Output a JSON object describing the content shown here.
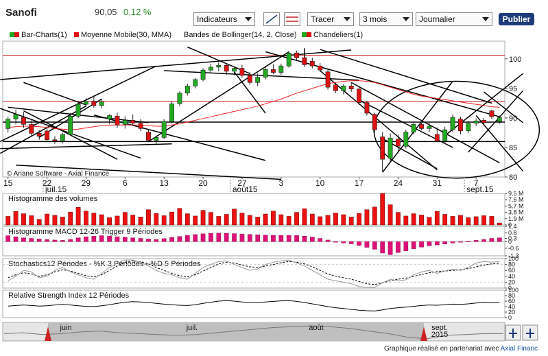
{
  "header": {
    "title": "Sanofi",
    "price": "90,05",
    "change": "0,12 %",
    "indicators_label": "Indicateurs",
    "tracer_label": "Tracer",
    "period_label": "3 mois",
    "interval_label": "Journalier",
    "publish_label": "Publier"
  },
  "legend": {
    "bar_charts": "Bar-Charts(1)",
    "moving_average": "Moyenne Mobile(30, MMA)",
    "bollinger": "Bandes de Bollinger(14, 2, Close)",
    "candles": "Chandeliers(1)"
  },
  "colors": {
    "up": "#22aa22",
    "down": "#dd1111",
    "ma": "#ee2222",
    "volume": "#ee1111",
    "macd": "#dd1177",
    "trend": "#000000",
    "publish": "#1e3c7a",
    "nav": "#888888"
  },
  "copyright": "© Ariane Software - Axial Finance",
  "credit": {
    "text": "Graphique réalisé en partenariat avec ",
    "partner": "Axial Financ"
  },
  "chart_data": [
    {
      "type": "candlestick",
      "title": "Sanofi",
      "y_ticks": [
        "100",
        "95",
        "90",
        "85",
        "80"
      ],
      "ylim": [
        80,
        103
      ],
      "x_day_labels": [
        "15",
        "22",
        "29",
        "6",
        "13",
        "20",
        "27",
        "3",
        "10",
        "17",
        "24",
        "31",
        "7"
      ],
      "x_month_labels": [
        "juil.15",
        "août15",
        "sept.15"
      ],
      "horizontal_levels": [
        100.6,
        92.8,
        89.3,
        86.0
      ],
      "candles": [
        {
          "o": 88.2,
          "h": 90.2,
          "l": 87.5,
          "c": 89.8
        },
        {
          "o": 89.8,
          "h": 91.4,
          "l": 88.9,
          "c": 90.6
        },
        {
          "o": 90.1,
          "h": 91.0,
          "l": 88.3,
          "c": 88.9
        },
        {
          "o": 88.9,
          "h": 89.6,
          "l": 87.0,
          "c": 87.4
        },
        {
          "o": 87.4,
          "h": 88.0,
          "l": 86.3,
          "c": 86.9
        },
        {
          "o": 87.8,
          "h": 88.3,
          "l": 85.9,
          "c": 86.3
        },
        {
          "o": 86.3,
          "h": 86.9,
          "l": 85.6,
          "c": 86.1
        },
        {
          "o": 86.1,
          "h": 87.5,
          "l": 85.7,
          "c": 87.2
        },
        {
          "o": 87.2,
          "h": 90.8,
          "l": 87.0,
          "c": 90.3
        },
        {
          "o": 90.3,
          "h": 92.8,
          "l": 90.0,
          "c": 92.3
        },
        {
          "o": 92.3,
          "h": 93.4,
          "l": 91.9,
          "c": 92.8
        },
        {
          "o": 92.8,
          "h": 93.8,
          "l": 91.7,
          "c": 92.1
        },
        {
          "o": 92.1,
          "h": 93.2,
          "l": 91.6,
          "c": 92.7
        },
        {
          "o": 89.8,
          "h": 90.6,
          "l": 89.0,
          "c": 90.4
        },
        {
          "o": 90.3,
          "h": 90.9,
          "l": 88.3,
          "c": 88.8
        },
        {
          "o": 88.9,
          "h": 90.3,
          "l": 88.2,
          "c": 89.6
        },
        {
          "o": 89.6,
          "h": 90.6,
          "l": 88.7,
          "c": 89.1
        },
        {
          "o": 89.1,
          "h": 89.8,
          "l": 87.8,
          "c": 88.2
        },
        {
          "o": 87.6,
          "h": 88.1,
          "l": 85.9,
          "c": 86.2
        },
        {
          "o": 86.2,
          "h": 87.0,
          "l": 85.6,
          "c": 86.7
        },
        {
          "o": 86.7,
          "h": 89.8,
          "l": 86.4,
          "c": 89.4
        },
        {
          "o": 89.4,
          "h": 92.9,
          "l": 89.1,
          "c": 92.4
        },
        {
          "o": 92.4,
          "h": 94.5,
          "l": 92.0,
          "c": 94.2
        },
        {
          "o": 94.2,
          "h": 95.8,
          "l": 93.8,
          "c": 95.4
        },
        {
          "o": 95.4,
          "h": 96.8,
          "l": 95.0,
          "c": 96.5
        },
        {
          "o": 96.5,
          "h": 98.4,
          "l": 96.2,
          "c": 98.1
        },
        {
          "o": 98.1,
          "h": 99.2,
          "l": 97.6,
          "c": 98.6
        },
        {
          "o": 98.6,
          "h": 99.4,
          "l": 97.9,
          "c": 98.9
        },
        {
          "o": 98.9,
          "h": 99.3,
          "l": 97.3,
          "c": 97.9
        },
        {
          "o": 97.9,
          "h": 98.7,
          "l": 97.2,
          "c": 98.4
        },
        {
          "o": 98.4,
          "h": 99.0,
          "l": 96.8,
          "c": 97.2
        },
        {
          "o": 97.2,
          "h": 97.8,
          "l": 95.6,
          "c": 96.0
        },
        {
          "o": 96.0,
          "h": 97.6,
          "l": 95.4,
          "c": 96.9
        },
        {
          "o": 96.9,
          "h": 98.6,
          "l": 96.5,
          "c": 98.2
        },
        {
          "o": 98.2,
          "h": 99.1,
          "l": 97.4,
          "c": 97.7
        },
        {
          "o": 97.7,
          "h": 99.2,
          "l": 97.3,
          "c": 98.8
        },
        {
          "o": 98.8,
          "h": 101.3,
          "l": 98.5,
          "c": 101.0
        },
        {
          "o": 101.0,
          "h": 101.4,
          "l": 99.8,
          "c": 100.2
        },
        {
          "o": 100.2,
          "h": 100.6,
          "l": 98.6,
          "c": 99.0
        },
        {
          "o": 99.6,
          "h": 100.2,
          "l": 98.4,
          "c": 98.8
        },
        {
          "o": 98.8,
          "h": 99.3,
          "l": 97.8,
          "c": 98.1
        },
        {
          "o": 97.8,
          "h": 98.2,
          "l": 94.8,
          "c": 95.2
        },
        {
          "o": 95.6,
          "h": 96.0,
          "l": 94.2,
          "c": 94.6
        },
        {
          "o": 94.6,
          "h": 95.7,
          "l": 94.0,
          "c": 95.4
        },
        {
          "o": 95.4,
          "h": 96.0,
          "l": 94.4,
          "c": 94.9
        },
        {
          "o": 94.9,
          "h": 95.2,
          "l": 92.2,
          "c": 92.6
        },
        {
          "o": 92.6,
          "h": 92.9,
          "l": 90.4,
          "c": 90.8
        },
        {
          "o": 90.6,
          "h": 90.9,
          "l": 87.6,
          "c": 88.0
        },
        {
          "o": 86.8,
          "h": 87.6,
          "l": 80.9,
          "c": 83.0
        },
        {
          "o": 83.2,
          "h": 87.4,
          "l": 82.6,
          "c": 86.6
        },
        {
          "o": 86.4,
          "h": 87.2,
          "l": 84.0,
          "c": 85.2
        },
        {
          "o": 85.2,
          "h": 88.0,
          "l": 84.8,
          "c": 87.6
        },
        {
          "o": 87.6,
          "h": 89.3,
          "l": 87.2,
          "c": 88.9
        },
        {
          "o": 88.9,
          "h": 89.4,
          "l": 87.9,
          "c": 88.2
        },
        {
          "o": 88.2,
          "h": 89.2,
          "l": 87.6,
          "c": 88.6
        },
        {
          "o": 87.2,
          "h": 88.4,
          "l": 85.9,
          "c": 86.1
        },
        {
          "o": 86.1,
          "h": 88.5,
          "l": 85.8,
          "c": 88.0
        },
        {
          "o": 88.0,
          "h": 90.6,
          "l": 87.6,
          "c": 90.1
        },
        {
          "o": 89.8,
          "h": 90.2,
          "l": 87.2,
          "c": 87.8
        },
        {
          "o": 87.8,
          "h": 89.5,
          "l": 87.4,
          "c": 89.1
        },
        {
          "o": 89.1,
          "h": 89.9,
          "l": 88.6,
          "c": 89.5
        },
        {
          "o": 89.6,
          "h": 90.0,
          "l": 88.8,
          "c": 89.2
        },
        {
          "o": 91.2,
          "h": 91.4,
          "l": 89.8,
          "c": 90.2
        },
        {
          "o": 89.4,
          "h": 90.4,
          "l": 89.0,
          "c": 90.05
        }
      ],
      "moving_average": [
        88.4,
        88.5,
        88.6,
        88.6,
        88.5,
        88.4,
        88.2,
        88.1,
        88.0,
        88.1,
        88.3,
        88.5,
        88.7,
        88.8,
        88.8,
        88.8,
        88.8,
        88.8,
        88.7,
        88.6,
        88.6,
        88.8,
        89.0,
        89.3,
        89.6,
        89.9,
        90.2,
        90.5,
        90.8,
        91.1,
        91.4,
        91.7,
        92.0,
        92.4,
        92.8,
        93.2,
        93.7,
        94.2,
        94.6,
        95.0,
        95.4,
        95.8,
        96.0,
        96.2,
        96.3,
        96.3,
        96.2,
        96.0,
        95.6,
        95.2,
        94.8,
        94.4,
        94.0,
        93.7,
        93.5,
        93.3,
        93.1,
        92.9,
        92.7,
        92.5,
        92.3,
        92.1,
        91.9,
        91.8
      ]
    },
    {
      "type": "bar",
      "title": "Histogramme des volumes",
      "y_ticks": [
        "9.5 M",
        "7.6 M",
        "5.7 M",
        "3.8 M",
        "1.9 M",
        "0"
      ],
      "ylim": [
        0,
        9.5
      ],
      "values": [
        2.6,
        4.1,
        3.4,
        2.8,
        1.7,
        3.3,
        2.9,
        2.4,
        3.9,
        5.3,
        4.2,
        3.6,
        3.1,
        2.2,
        2.7,
        3.8,
        3.0,
        2.4,
        4.6,
        3.5,
        2.8,
        3.9,
        5.0,
        3.4,
        2.7,
        4.4,
        3.8,
        2.6,
        3.2,
        4.8,
        3.6,
        2.9,
        2.4,
        3.3,
        4.2,
        3.1,
        2.6,
        3.8,
        4.9,
        3.3,
        2.5,
        2.9,
        3.6,
        3.1,
        2.4,
        3.5,
        4.6,
        5.4,
        9.5,
        6.1,
        3.8,
        2.7,
        3.4,
        3.0,
        2.3,
        4.1,
        3.2,
        2.6,
        2.9,
        2.2,
        2.5,
        2.8,
        2.6,
        0.6
      ]
    },
    {
      "type": "bar",
      "title": "Histogramme MACD 12-26   Trigger 9 Périodes",
      "y_ticks": [
        "1.4",
        "0.8",
        "0.3",
        "0",
        "-0.6",
        "-1.3"
      ],
      "ylim": [
        -1.3,
        1.4
      ],
      "values": [
        0.55,
        0.45,
        0.35,
        0.3,
        0.25,
        0.2,
        0.15,
        0.12,
        0.2,
        0.35,
        0.45,
        0.5,
        0.55,
        0.5,
        0.45,
        0.4,
        0.35,
        0.3,
        0.25,
        0.2,
        0.28,
        0.38,
        0.48,
        0.58,
        0.65,
        0.72,
        0.76,
        0.78,
        0.77,
        0.74,
        0.7,
        0.66,
        0.63,
        0.6,
        0.58,
        0.57,
        0.58,
        0.56,
        0.5,
        0.42,
        0.3,
        0.15,
        0.0,
        -0.12,
        -0.2,
        -0.35,
        -0.52,
        -0.7,
        -1.05,
        -1.2,
        -1.0,
        -0.85,
        -0.65,
        -0.5,
        -0.38,
        -0.3,
        -0.22,
        -0.12,
        -0.05,
        0.05,
        0.12,
        0.2,
        0.3,
        0.35
      ]
    },
    {
      "type": "line",
      "title": "Stochastics12 Périodes   -   %K 3 Périodes   -   %D 5 Périodes",
      "y_ticks": [
        "100",
        "80",
        "60",
        "40",
        "20",
        "0"
      ],
      "ylim": [
        0,
        100
      ],
      "series": [
        {
          "values": [
            35,
            45,
            52,
            48,
            40,
            45,
            55,
            62,
            58,
            50,
            42,
            38,
            45,
            60,
            75,
            88,
            92,
            90,
            82,
            70,
            60,
            50,
            42,
            38,
            45,
            58,
            70,
            82,
            88,
            85,
            78,
            72,
            70,
            75,
            80,
            86,
            90,
            88,
            82,
            72,
            60,
            48,
            40,
            35,
            30,
            22,
            15,
            12,
            18,
            25,
            30,
            34,
            40,
            46,
            52,
            56,
            58,
            60,
            62,
            66,
            72,
            78,
            82,
            84
          ]
        },
        {
          "values": [
            25,
            40,
            60,
            55,
            35,
            40,
            60,
            70,
            55,
            45,
            35,
            30,
            50,
            70,
            85,
            95,
            95,
            88,
            75,
            60,
            50,
            45,
            35,
            30,
            50,
            70,
            80,
            90,
            92,
            80,
            70,
            60,
            65,
            80,
            88,
            92,
            95,
            85,
            75,
            60,
            45,
            30,
            25,
            20,
            15,
            5,
            3,
            2,
            18,
            30,
            25,
            28,
            45,
            55,
            60,
            50,
            58,
            65,
            60,
            70,
            85,
            90,
            88,
            90
          ]
        }
      ]
    },
    {
      "type": "line",
      "title": "Relative Strength Index 12 Périodes",
      "y_ticks": [
        "100",
        "80",
        "60",
        "40",
        "20",
        "0"
      ],
      "ylim": [
        0,
        100
      ],
      "series": [
        {
          "values": [
            42,
            44,
            46,
            44,
            42,
            43,
            46,
            48,
            46,
            43,
            41,
            40,
            43,
            47,
            52,
            56,
            58,
            57,
            55,
            52,
            49,
            47,
            45,
            44,
            47,
            52,
            56,
            60,
            62,
            60,
            57,
            55,
            55,
            57,
            59,
            61,
            62,
            59,
            55,
            50,
            45,
            40,
            36,
            33,
            30,
            27,
            25,
            24,
            28,
            33,
            36,
            38,
            41,
            44,
            46,
            45,
            47,
            49,
            48,
            50,
            53,
            55,
            54,
            55
          ]
        }
      ]
    },
    {
      "type": "line",
      "title": "Navigator",
      "x_month_labels": [
        "juin",
        "juil.",
        "août",
        "sept.\n2015"
      ],
      "series": [
        {
          "values": [
            90,
            91,
            89,
            90,
            92,
            93,
            91,
            90,
            89,
            88,
            89,
            91,
            93,
            95,
            97,
            98,
            99,
            98,
            96,
            93,
            90,
            86,
            84,
            88,
            89,
            90,
            90
          ]
        }
      ]
    }
  ]
}
